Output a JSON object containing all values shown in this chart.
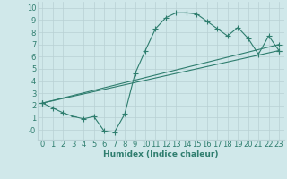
{
  "line1_x": [
    0,
    1,
    2,
    3,
    4,
    5,
    6,
    7,
    8,
    9,
    10,
    11,
    12,
    13,
    14,
    15,
    16,
    17,
    18,
    19,
    20,
    21,
    22,
    23
  ],
  "line1_y": [
    2.2,
    1.8,
    1.4,
    1.1,
    0.9,
    1.1,
    -0.1,
    -0.2,
    1.3,
    4.6,
    6.5,
    8.3,
    9.2,
    9.6,
    9.6,
    9.5,
    8.9,
    8.3,
    7.7,
    8.4,
    7.5,
    6.2,
    7.7,
    6.5
  ],
  "line2_x": [
    0,
    23
  ],
  "line2_y": [
    2.2,
    7.0
  ],
  "line3_x": [
    0,
    23
  ],
  "line3_y": [
    2.2,
    6.5
  ],
  "line_color": "#2e7d6e",
  "bg_color": "#d0e8ea",
  "grid_color": "#b8d0d4",
  "xlabel": "Humidex (Indice chaleur)",
  "xlim": [
    -0.5,
    23.5
  ],
  "ylim": [
    -0.8,
    10.5
  ],
  "xticks": [
    0,
    1,
    2,
    3,
    4,
    5,
    6,
    7,
    8,
    9,
    10,
    11,
    12,
    13,
    14,
    15,
    16,
    17,
    18,
    19,
    20,
    21,
    22,
    23
  ],
  "yticks": [
    0,
    1,
    2,
    3,
    4,
    5,
    6,
    7,
    8,
    9,
    10
  ],
  "ytick_labels": [
    "-0",
    "1",
    "2",
    "3",
    "4",
    "5",
    "6",
    "7",
    "8",
    "9",
    "10"
  ],
  "xlabel_fontsize": 6.5,
  "tick_fontsize": 6.0,
  "marker_size": 2.0,
  "line_width": 0.8
}
